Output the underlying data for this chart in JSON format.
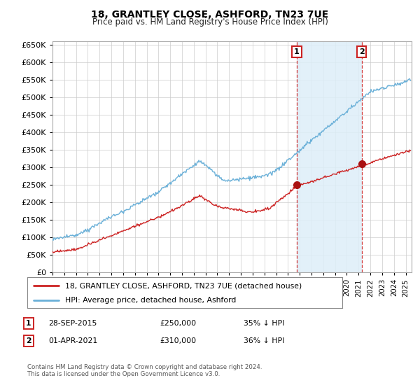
{
  "title": "18, GRANTLEY CLOSE, ASHFORD, TN23 7UE",
  "subtitle": "Price paid vs. HM Land Registry's House Price Index (HPI)",
  "hpi_color": "#6ab0d8",
  "price_color": "#cc2222",
  "highlight_color": "#ddeef8",
  "vline_color": "#cc2222",
  "bg_color": "#ffffff",
  "grid_color": "#cccccc",
  "ylim": [
    0,
    660000
  ],
  "yticks": [
    0,
    50000,
    100000,
    150000,
    200000,
    250000,
    300000,
    350000,
    400000,
    450000,
    500000,
    550000,
    600000,
    650000
  ],
  "legend_label_red": "18, GRANTLEY CLOSE, ASHFORD, TN23 7UE (detached house)",
  "legend_label_blue": "HPI: Average price, detached house, Ashford",
  "annotation1_date": "28-SEP-2015",
  "annotation1_price": "£250,000",
  "annotation1_note": "35% ↓ HPI",
  "annotation2_date": "01-APR-2021",
  "annotation2_price": "£310,000",
  "annotation2_note": "36% ↓ HPI",
  "footer": "Contains HM Land Registry data © Crown copyright and database right 2024.\nThis data is licensed under the Open Government Licence v3.0.",
  "sale1_year": 2015.75,
  "sale1_value": 250000,
  "sale2_year": 2021.25,
  "sale2_value": 310000,
  "xmin": 1995,
  "xmax": 2025.5
}
